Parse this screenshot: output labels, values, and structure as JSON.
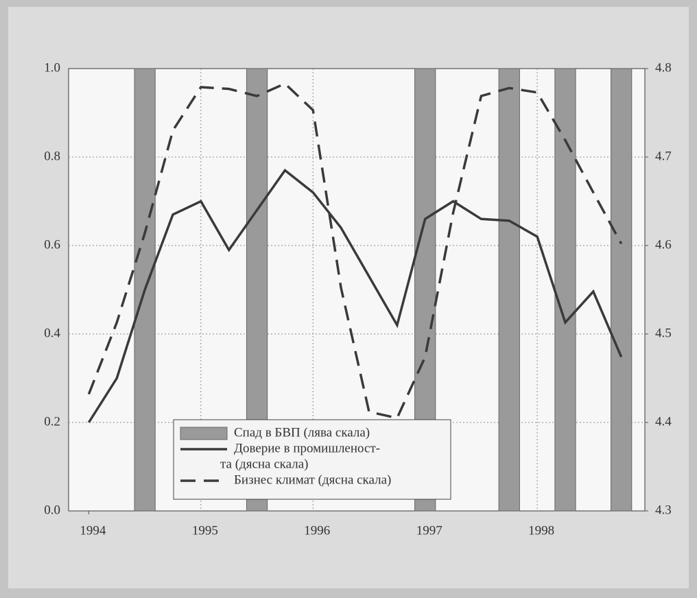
{
  "chart_data": {
    "type": "line",
    "x": [
      1994,
      1994.25,
      1994.5,
      1994.75,
      1995,
      1995.25,
      1995.5,
      1995.75,
      1996,
      1996.25,
      1996.5,
      1996.75,
      1997,
      1997.25,
      1997.5,
      1997.75,
      1998,
      1998.25,
      1998.5,
      1998.75
    ],
    "series": [
      {
        "name": [
          "Спад в БВП (лява скала)"
        ],
        "type": "bar",
        "axis": "y",
        "color": "#9a9a9a",
        "values": [
          null,
          null,
          1.0,
          null,
          null,
          null,
          1.0,
          null,
          null,
          null,
          null,
          null,
          1.0,
          null,
          null,
          1.0,
          null,
          1.0,
          null,
          1.0
        ]
      },
      {
        "name": [
          "Доверие в промишленост-",
          "та (дясна скала)"
        ],
        "type": "line",
        "style": "solid",
        "axis": "y2",
        "color": "#3a3a3a",
        "values": [
          4.4,
          4.45,
          4.55,
          4.635,
          4.65,
          4.595,
          4.64,
          4.685,
          4.66,
          4.62,
          4.565,
          4.51,
          4.63,
          4.65,
          4.63,
          4.628,
          4.61,
          4.513,
          4.548,
          4.474
        ]
      },
      {
        "name": [
          "Бизнес климат (дясна скала)"
        ],
        "type": "line",
        "style": "dashed",
        "axis": "y2",
        "color": "#3a3a3a",
        "values": [
          4.432,
          4.513,
          4.614,
          4.73,
          4.779,
          4.777,
          4.769,
          4.783,
          4.753,
          4.552,
          4.412,
          4.405,
          4.474,
          4.637,
          4.769,
          4.778,
          4.773,
          4.719,
          4.66,
          4.602
        ]
      }
    ],
    "xlim": [
      1993.82,
      1998.96
    ],
    "xticks": [
      1994,
      1995,
      1996,
      1997,
      1998
    ],
    "ylim": [
      0,
      1
    ],
    "yticks": [
      {
        "value": 0,
        "label": "0.0"
      },
      0.2,
      0.4,
      0.6,
      0.8,
      {
        "value": 1,
        "label": "1.0"
      }
    ],
    "y2lim": [
      4.3,
      4.8
    ],
    "y2ticks": [
      4.3,
      4.4,
      4.5,
      4.6,
      4.7,
      4.8
    ],
    "grid": true,
    "legend": "lower center"
  }
}
